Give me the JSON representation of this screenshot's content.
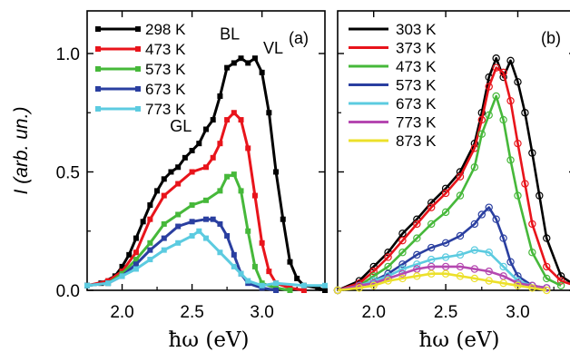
{
  "chart_data": [
    {
      "type": "line",
      "panel_label": "(a)",
      "xlabel": "ħω (eV)",
      "ylabel": "I (arb. un.)",
      "xlim": [
        1.75,
        3.45
      ],
      "ylim": [
        0,
        1.18
      ],
      "xticks": [
        "2.0",
        "2.5",
        "3.0"
      ],
      "yticks": [
        "0.0",
        "0.5",
        "1.0"
      ],
      "legend_position": "top-left",
      "annotations": [
        {
          "text": "GL",
          "x": 2.42,
          "y": 0.67
        },
        {
          "text": "BL",
          "x": 2.77,
          "y": 1.06
        },
        {
          "text": "VL",
          "x": 3.08,
          "y": 1.0
        }
      ],
      "series": [
        {
          "name": "298 K",
          "color": "#000000",
          "x": [
            1.75,
            1.85,
            1.95,
            2.0,
            2.05,
            2.1,
            2.15,
            2.2,
            2.25,
            2.3,
            2.35,
            2.4,
            2.45,
            2.5,
            2.55,
            2.6,
            2.65,
            2.7,
            2.75,
            2.8,
            2.85,
            2.9,
            2.95,
            3.0,
            3.05,
            3.1,
            3.15,
            3.2,
            3.25,
            3.3,
            3.4,
            3.45
          ],
          "y": [
            0.02,
            0.03,
            0.06,
            0.1,
            0.15,
            0.22,
            0.29,
            0.36,
            0.42,
            0.47,
            0.5,
            0.52,
            0.56,
            0.59,
            0.62,
            0.68,
            0.72,
            0.82,
            0.94,
            0.96,
            0.98,
            0.96,
            0.98,
            0.92,
            0.75,
            0.5,
            0.3,
            0.12,
            0.05,
            0.02,
            0.01,
            0.0
          ]
        },
        {
          "name": "473 K",
          "color": "#e8141b",
          "x": [
            1.75,
            1.9,
            2.0,
            2.1,
            2.2,
            2.3,
            2.4,
            2.5,
            2.6,
            2.65,
            2.7,
            2.75,
            2.8,
            2.85,
            2.9,
            2.95,
            3.0,
            3.05,
            3.1,
            3.2,
            3.3
          ],
          "y": [
            0.02,
            0.04,
            0.08,
            0.16,
            0.3,
            0.4,
            0.45,
            0.5,
            0.52,
            0.56,
            0.62,
            0.72,
            0.75,
            0.72,
            0.6,
            0.4,
            0.2,
            0.08,
            0.03,
            0.01,
            0.0
          ]
        },
        {
          "name": "573 K",
          "color": "#46b83a",
          "x": [
            1.75,
            1.9,
            2.0,
            2.1,
            2.2,
            2.3,
            2.4,
            2.5,
            2.6,
            2.7,
            2.75,
            2.8,
            2.85,
            2.9,
            2.95,
            3.0,
            3.1,
            3.2
          ],
          "y": [
            0.02,
            0.03,
            0.07,
            0.13,
            0.2,
            0.28,
            0.32,
            0.36,
            0.38,
            0.42,
            0.48,
            0.49,
            0.42,
            0.25,
            0.1,
            0.03,
            0.01,
            0.0
          ]
        },
        {
          "name": "673 K",
          "color": "#2a3fa0",
          "x": [
            1.75,
            1.9,
            2.0,
            2.1,
            2.2,
            2.3,
            2.4,
            2.5,
            2.6,
            2.65,
            2.7,
            2.75,
            2.8,
            2.85,
            2.9,
            3.0,
            3.1
          ],
          "y": [
            0.02,
            0.03,
            0.06,
            0.11,
            0.17,
            0.22,
            0.27,
            0.29,
            0.3,
            0.3,
            0.28,
            0.23,
            0.15,
            0.07,
            0.03,
            0.01,
            0.0
          ]
        },
        {
          "name": "773 K",
          "color": "#5ccbe0",
          "x": [
            1.75,
            1.9,
            2.0,
            2.1,
            2.2,
            2.3,
            2.4,
            2.5,
            2.55,
            2.6,
            2.7,
            2.8,
            2.85,
            2.9,
            3.0,
            3.1,
            3.3,
            3.45
          ],
          "y": [
            0.02,
            0.03,
            0.06,
            0.09,
            0.13,
            0.17,
            0.2,
            0.23,
            0.25,
            0.22,
            0.16,
            0.1,
            0.07,
            0.04,
            0.02,
            0.03,
            0.02,
            0.02
          ]
        }
      ]
    },
    {
      "type": "scatter",
      "panel_label": "(b)",
      "xlabel": "ħω (eV)",
      "xlim": [
        1.75,
        3.4
      ],
      "ylim": [
        0,
        1.18
      ],
      "xticks": [
        "2.0",
        "2.5",
        "3.0"
      ],
      "legend_position": "top-left",
      "series": [
        {
          "name": "303 K",
          "color": "#000000",
          "x": [
            1.75,
            1.9,
            2.0,
            2.1,
            2.2,
            2.3,
            2.4,
            2.5,
            2.6,
            2.7,
            2.75,
            2.8,
            2.85,
            2.9,
            2.95,
            3.0,
            3.05,
            3.1,
            3.15,
            3.2,
            3.3,
            3.4
          ],
          "y": [
            0.0,
            0.04,
            0.1,
            0.16,
            0.24,
            0.3,
            0.37,
            0.43,
            0.5,
            0.62,
            0.75,
            0.9,
            0.98,
            0.9,
            0.97,
            0.88,
            0.75,
            0.58,
            0.4,
            0.22,
            0.06,
            0.02
          ]
        },
        {
          "name": "373 K",
          "color": "#e8141b",
          "x": [
            1.75,
            1.9,
            2.0,
            2.1,
            2.2,
            2.3,
            2.4,
            2.5,
            2.6,
            2.7,
            2.75,
            2.8,
            2.85,
            2.9,
            2.95,
            3.0,
            3.05,
            3.1,
            3.2,
            3.3,
            3.4
          ],
          "y": [
            0.0,
            0.03,
            0.08,
            0.14,
            0.21,
            0.28,
            0.35,
            0.41,
            0.48,
            0.6,
            0.72,
            0.86,
            0.94,
            0.92,
            0.8,
            0.62,
            0.45,
            0.28,
            0.1,
            0.04,
            0.02
          ]
        },
        {
          "name": "473 K",
          "color": "#46b83a",
          "x": [
            1.75,
            1.9,
            2.0,
            2.1,
            2.2,
            2.3,
            2.4,
            2.5,
            2.6,
            2.7,
            2.75,
            2.8,
            2.85,
            2.9,
            2.95,
            3.0,
            3.1,
            3.2,
            3.3
          ],
          "y": [
            0.0,
            0.02,
            0.06,
            0.1,
            0.16,
            0.22,
            0.28,
            0.33,
            0.4,
            0.52,
            0.66,
            0.74,
            0.82,
            0.72,
            0.55,
            0.4,
            0.16,
            0.05,
            0.02
          ]
        },
        {
          "name": "573 K",
          "color": "#2a3fa0",
          "x": [
            1.75,
            1.9,
            2.0,
            2.1,
            2.2,
            2.3,
            2.4,
            2.5,
            2.6,
            2.7,
            2.75,
            2.8,
            2.85,
            2.9,
            2.95,
            3.0,
            3.1,
            3.2
          ],
          "y": [
            0.0,
            0.02,
            0.04,
            0.07,
            0.11,
            0.15,
            0.18,
            0.2,
            0.23,
            0.28,
            0.32,
            0.35,
            0.3,
            0.22,
            0.12,
            0.06,
            0.02,
            0.01
          ]
        },
        {
          "name": "673 K",
          "color": "#5ccbe0",
          "x": [
            1.75,
            1.9,
            2.0,
            2.1,
            2.2,
            2.3,
            2.4,
            2.5,
            2.6,
            2.7,
            2.8,
            2.9,
            3.0,
            3.1,
            3.2
          ],
          "y": [
            0.0,
            0.02,
            0.04,
            0.06,
            0.09,
            0.11,
            0.13,
            0.14,
            0.15,
            0.17,
            0.16,
            0.1,
            0.04,
            0.02,
            0.01
          ]
        },
        {
          "name": "773 K",
          "color": "#b548b0",
          "x": [
            1.75,
            1.9,
            2.0,
            2.1,
            2.2,
            2.3,
            2.4,
            2.5,
            2.6,
            2.7,
            2.8,
            2.9,
            3.0,
            3.1,
            3.2
          ],
          "y": [
            0.0,
            0.02,
            0.03,
            0.05,
            0.07,
            0.09,
            0.1,
            0.1,
            0.1,
            0.09,
            0.08,
            0.06,
            0.03,
            0.02,
            0.01
          ]
        },
        {
          "name": "873 K",
          "color": "#ece02a",
          "x": [
            1.75,
            1.9,
            2.0,
            2.1,
            2.2,
            2.3,
            2.4,
            2.5,
            2.6,
            2.7,
            2.8,
            2.9,
            3.0,
            3.1,
            3.2
          ],
          "y": [
            0.0,
            0.01,
            0.02,
            0.04,
            0.05,
            0.06,
            0.07,
            0.07,
            0.06,
            0.05,
            0.04,
            0.03,
            0.02,
            0.01,
            0.0
          ]
        }
      ]
    }
  ]
}
